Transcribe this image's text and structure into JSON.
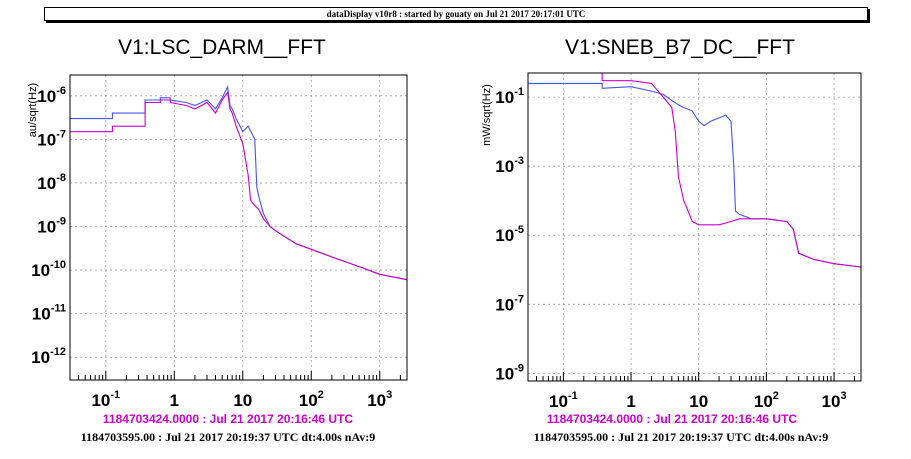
{
  "header": {
    "banner": "dataDisplay v10r8 : started by gouaty on Jul 21 2017 20:17:01 UTC"
  },
  "colors": {
    "reference": "#cc00cc",
    "current": "#4455ee",
    "grid": "#999999"
  },
  "chart_data": [
    {
      "type": "line",
      "title": "V1:LSC_DARM__FFT",
      "xlabel": "",
      "ylabel": "au/sqrt(Hz)",
      "log_x": true,
      "log_y": true,
      "xlim": [
        0.03,
        2500
      ],
      "ylim": [
        3e-13,
        3e-06
      ],
      "grid": true,
      "x_ticks": [
        {
          "value": 0.1,
          "base": "10",
          "exp": "-1"
        },
        {
          "value": 1,
          "base": "1",
          "exp": ""
        },
        {
          "value": 10,
          "base": "10",
          "exp": ""
        },
        {
          "value": 100,
          "base": "10",
          "exp": "2"
        },
        {
          "value": 1000,
          "base": "10",
          "exp": "3"
        }
      ],
      "y_ticks": [
        {
          "value": 1e-12,
          "base": "10",
          "exp": "-12"
        },
        {
          "value": 1e-11,
          "base": "10",
          "exp": "-11"
        },
        {
          "value": 1e-10,
          "base": "10",
          "exp": "-10"
        },
        {
          "value": 1e-09,
          "base": "10",
          "exp": "-9"
        },
        {
          "value": 1e-08,
          "base": "10",
          "exp": "-8"
        },
        {
          "value": 1e-07,
          "base": "10",
          "exp": "-7"
        },
        {
          "value": 1e-06,
          "base": "10",
          "exp": "-6"
        }
      ],
      "series": [
        {
          "color": "#4455ee",
          "x": [
            0.03,
            0.125,
            0.125,
            0.375,
            0.375,
            0.625,
            0.625,
            0.875,
            0.875,
            1.5,
            2,
            3,
            4,
            5,
            6,
            6.5,
            7,
            8,
            10,
            12,
            15,
            16,
            17,
            20,
            25,
            30,
            40,
            60,
            100,
            200,
            500,
            1000,
            2500
          ],
          "y": [
            3e-07,
            3e-07,
            4e-07,
            4e-07,
            8e-07,
            8e-07,
            9e-07,
            9e-07,
            8e-07,
            7e-07,
            6e-07,
            8e-07,
            5e-07,
            9e-07,
            1.6e-06,
            6e-07,
            5e-07,
            3e-07,
            1.5e-07,
            2e-07,
            1e-07,
            8e-09,
            5e-09,
            2e-09,
            1e-09,
            8e-10,
            6e-10,
            4e-10,
            3e-10,
            2e-10,
            1.2e-10,
            8e-11,
            6e-11
          ]
        },
        {
          "color": "#cc00cc",
          "x": [
            0.03,
            0.125,
            0.125,
            0.375,
            0.375,
            0.625,
            0.625,
            0.875,
            0.875,
            1.5,
            2,
            3,
            4,
            5,
            6,
            6.5,
            7,
            8,
            10,
            12,
            13,
            15,
            17,
            20,
            25,
            30,
            40,
            60,
            100,
            200,
            500,
            1000,
            2500
          ],
          "y": [
            1.5e-07,
            1.5e-07,
            2e-07,
            2e-07,
            7e-07,
            7e-07,
            8e-07,
            8e-07,
            7e-07,
            6e-07,
            5e-07,
            7e-07,
            4e-07,
            8e-07,
            1.2e-06,
            5e-07,
            4e-07,
            2e-07,
            8e-08,
            1.5e-08,
            4e-09,
            3e-09,
            2.5e-09,
            1.5e-09,
            1e-09,
            8e-10,
            6e-10,
            4e-10,
            3e-10,
            2e-10,
            1.2e-10,
            8e-11,
            6e-11
          ]
        }
      ]
    },
    {
      "type": "line",
      "title": "V1:SNEB_B7_DC__FFT",
      "xlabel": "",
      "ylabel": "mW/sqrt(Hz)",
      "log_x": true,
      "log_y": true,
      "xlim": [
        0.03,
        2500
      ],
      "ylim": [
        6e-10,
        0.5
      ],
      "grid": true,
      "x_ticks": [
        {
          "value": 0.1,
          "base": "10",
          "exp": "-1"
        },
        {
          "value": 1,
          "base": "1",
          "exp": ""
        },
        {
          "value": 10,
          "base": "10",
          "exp": ""
        },
        {
          "value": 100,
          "base": "10",
          "exp": "2"
        },
        {
          "value": 1000,
          "base": "10",
          "exp": "3"
        }
      ],
      "y_ticks": [
        {
          "value": 1e-09,
          "base": "10",
          "exp": "-9"
        },
        {
          "value": 1e-07,
          "base": "10",
          "exp": "-7"
        },
        {
          "value": 1e-05,
          "base": "10",
          "exp": "-5"
        },
        {
          "value": 0.001,
          "base": "10",
          "exp": "-3"
        },
        {
          "value": 0.1,
          "base": "10",
          "exp": "-1"
        }
      ],
      "series": [
        {
          "color": "#4455ee",
          "x": [
            0.03,
            0.375,
            0.375,
            1,
            2,
            3,
            4,
            5,
            6,
            8,
            10,
            12,
            15,
            20,
            25,
            30,
            33,
            35,
            40,
            60,
            100,
            200,
            250,
            300,
            500,
            1000,
            2500
          ],
          "y": [
            0.25,
            0.25,
            0.18,
            0.2,
            0.15,
            0.12,
            0.08,
            0.06,
            0.05,
            0.04,
            0.02,
            0.015,
            0.02,
            0.025,
            0.03,
            0.02,
            0.001,
            5e-05,
            4e-05,
            3e-05,
            3e-05,
            2.5e-05,
            1.5e-05,
            3e-06,
            2e-06,
            1.5e-06,
            1.2e-06
          ]
        },
        {
          "color": "#cc00cc",
          "x": [
            0.03,
            0.375,
            0.375,
            1,
            2,
            3,
            4,
            4.5,
            5,
            6,
            7,
            8,
            10,
            15,
            20,
            30,
            40,
            60,
            100,
            200,
            250,
            300,
            500,
            1000,
            2500
          ],
          "y": [
            0.5,
            0.5,
            0.3,
            0.3,
            0.25,
            0.1,
            0.05,
            0.01,
            0.0005,
            0.0001,
            5e-05,
            2.5e-05,
            2e-05,
            2e-05,
            2e-05,
            2.5e-05,
            3e-05,
            3e-05,
            3e-05,
            2.5e-05,
            1.5e-05,
            3e-06,
            2e-06,
            1.5e-06,
            1.2e-06
          ]
        }
      ]
    }
  ],
  "footers": [
    {
      "reference_time": "1184703424.0000 : Jul 21 2017 20:16:46 UTC",
      "current_time": "1184703595.00 : Jul 21 2017 20:19:37 UTC dt:4.00s nAv:9"
    },
    {
      "reference_time": "1184703424.0000 : Jul 21 2017 20:16:46 UTC",
      "current_time": "1184703595.00 : Jul 21 2017 20:19:37 UTC dt:4.00s nAv:9"
    }
  ]
}
